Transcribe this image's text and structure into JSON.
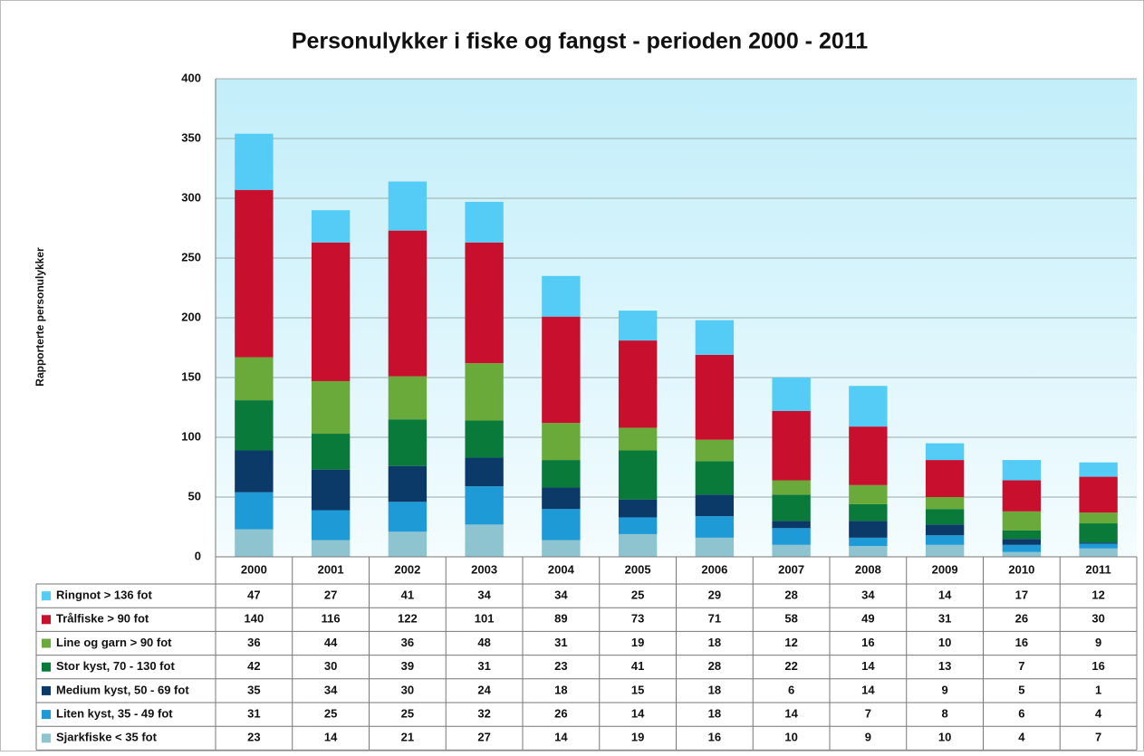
{
  "chart_data": {
    "type": "bar",
    "stacked": true,
    "title": "Personulykker i fiske og fangst - perioden 2000 - 2011",
    "y_label": "Rapporterte personulykker",
    "categories": [
      "2000",
      "2001",
      "2002",
      "2003",
      "2004",
      "2005",
      "2006",
      "2007",
      "2008",
      "2009",
      "2010",
      "2011"
    ],
    "series": [
      {
        "name": "Ringnot > 136 fot",
        "color": "#55ccf5",
        "values": [
          47,
          27,
          41,
          34,
          34,
          25,
          29,
          28,
          34,
          14,
          17,
          12
        ]
      },
      {
        "name": "Trålfiske > 90 fot",
        "color": "#c8102e",
        "values": [
          140,
          116,
          122,
          101,
          89,
          73,
          71,
          58,
          49,
          31,
          26,
          30
        ]
      },
      {
        "name": "Line og garn > 90 fot",
        "color": "#6aaa3a",
        "values": [
          36,
          44,
          36,
          48,
          31,
          19,
          18,
          12,
          16,
          10,
          16,
          9
        ]
      },
      {
        "name": "Stor kyst, 70 - 130 fot",
        "color": "#0a7a3a",
        "values": [
          42,
          30,
          39,
          31,
          23,
          41,
          28,
          22,
          14,
          13,
          7,
          16
        ]
      },
      {
        "name": "Medium kyst, 50 - 69 fot",
        "color": "#0b3a68",
        "values": [
          35,
          34,
          30,
          24,
          18,
          15,
          18,
          6,
          14,
          9,
          5,
          1
        ]
      },
      {
        "name": "Liten kyst, 35 - 49 fot",
        "color": "#1e9ad6",
        "values": [
          31,
          25,
          25,
          32,
          26,
          14,
          18,
          14,
          7,
          8,
          6,
          4
        ]
      },
      {
        "name": "Sjarkfiske < 35 fot",
        "color": "#8ec3d0",
        "values": [
          23,
          14,
          21,
          27,
          14,
          19,
          16,
          10,
          9,
          10,
          4,
          7
        ]
      }
    ],
    "ylim": [
      0,
      400
    ],
    "yticks": [
      0,
      50,
      100,
      150,
      200,
      250,
      300,
      350,
      400
    ],
    "grid": true
  }
}
